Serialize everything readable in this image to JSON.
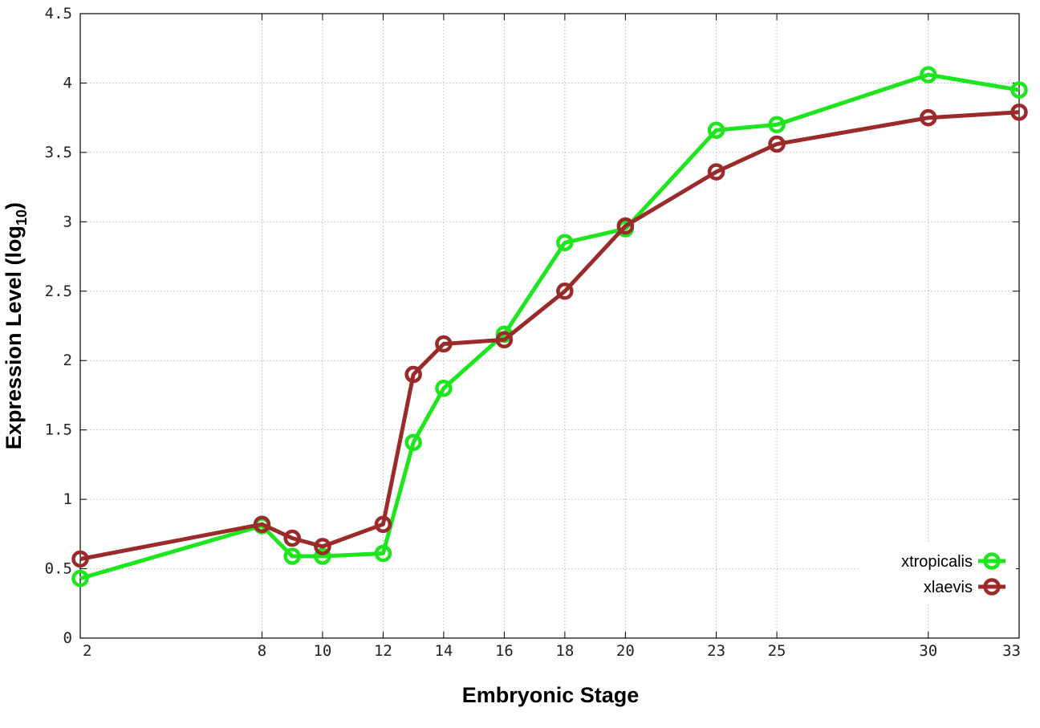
{
  "chart_data": {
    "type": "line",
    "title": "",
    "xlabel": "Embryonic Stage",
    "ylabel": {
      "prefix": "Expression Level (log",
      "subscript": "10",
      "suffix": ")"
    },
    "xlim": [
      2,
      33
    ],
    "ylim": [
      0,
      4.5
    ],
    "x_ticks": [
      2,
      8,
      10,
      12,
      14,
      16,
      18,
      20,
      23,
      25,
      30,
      33
    ],
    "x_tick_labels": [
      "2",
      "8",
      "10",
      "12",
      "14",
      "16",
      "18",
      "20",
      "23",
      "25",
      "30",
      "33"
    ],
    "y_ticks": [
      0,
      0.5,
      1,
      1.5,
      2,
      2.5,
      3,
      3.5,
      4,
      4.5
    ],
    "y_tick_labels": [
      "0",
      "0.5",
      "1",
      "1.5",
      "2",
      "2.5",
      "3",
      "3.5",
      "4",
      "4.5"
    ],
    "grid": true,
    "legend_position": "bottom-right",
    "x": [
      2,
      8,
      9,
      10,
      12,
      13,
      14,
      16,
      18,
      20,
      23,
      25,
      30,
      33
    ],
    "series": [
      {
        "name": "xtropicalis",
        "color": "#1ee61e",
        "values": [
          0.43,
          0.81,
          0.59,
          0.59,
          0.61,
          1.41,
          1.8,
          2.19,
          2.85,
          2.95,
          3.66,
          3.7,
          4.06,
          3.95
        ]
      },
      {
        "name": "xlaevis",
        "color": "#9b2a2a",
        "values": [
          0.57,
          0.82,
          0.72,
          0.66,
          0.82,
          1.9,
          2.12,
          2.15,
          2.5,
          2.97,
          3.36,
          3.56,
          3.75,
          3.79
        ]
      }
    ]
  }
}
